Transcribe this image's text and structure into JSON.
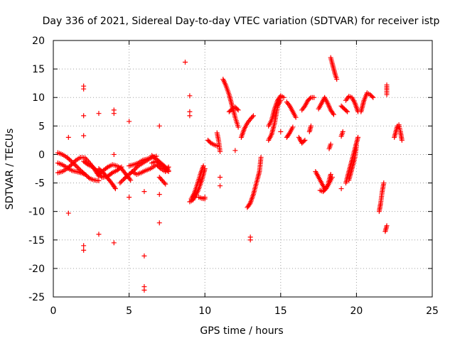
{
  "chart_data": {
    "type": "scatter",
    "title": "Day 336 of 2021, Sidereal Day-to-day VTEC variation (SDTVAR) for receiver istp",
    "xlabel": "GPS time / hours",
    "ylabel": "SDTVAR / TECUs",
    "xlim": [
      0,
      25
    ],
    "ylim": [
      -25,
      20
    ],
    "xticks": [
      0,
      5,
      10,
      15,
      20,
      25
    ],
    "yticks": [
      -25,
      -20,
      -15,
      -10,
      -5,
      0,
      5,
      10,
      15,
      20
    ],
    "grid": true,
    "marker": "+",
    "color": "#ff0000",
    "series": [
      {
        "name": "SDTVAR",
        "segments": [
          [
            [
              0.3,
              0.3
            ],
            [
              0.6,
              0
            ],
            [
              0.9,
              -0.5
            ],
            [
              1.2,
              -1.2
            ],
            [
              1.5,
              -2
            ],
            [
              1.8,
              -2.8
            ],
            [
              2.1,
              -3.5
            ],
            [
              2.4,
              -4.2
            ],
            [
              2.7,
              -4.5
            ],
            [
              3.0,
              -4.6
            ]
          ],
          [
            [
              0.3,
              -1.5
            ],
            [
              0.6,
              -1.8
            ],
            [
              0.9,
              -2.3
            ],
            [
              1.2,
              -2.8
            ],
            [
              1.5,
              -3.0
            ],
            [
              1.8,
              -3.2
            ],
            [
              2.1,
              -3.5
            ]
          ],
          [
            [
              0.3,
              -3.2
            ],
            [
              0.6,
              -3.0
            ],
            [
              0.9,
              -2.5
            ],
            [
              1.2,
              -1.8
            ],
            [
              1.5,
              -1.0
            ],
            [
              1.8,
              -0.5
            ],
            [
              2.1,
              -0.6
            ],
            [
              2.4,
              -1.5
            ],
            [
              2.7,
              -2.5
            ],
            [
              3.0,
              -3.8
            ]
          ],
          [
            [
              2.0,
              -1.2
            ],
            [
              2.3,
              -1.8
            ],
            [
              2.6,
              -2.2
            ],
            [
              2.9,
              -3.0
            ],
            [
              3.2,
              -4.0
            ]
          ],
          [
            [
              3.0,
              -3.5
            ],
            [
              3.3,
              -2.8
            ],
            [
              3.6,
              -2.2
            ],
            [
              3.9,
              -1.8
            ],
            [
              4.2,
              -2.0
            ],
            [
              4.5,
              -2.5
            ],
            [
              4.8,
              -3.5
            ],
            [
              5.1,
              -4.5
            ]
          ],
          [
            [
              3.0,
              -2.5
            ],
            [
              3.3,
              -3.2
            ],
            [
              3.6,
              -4.2
            ],
            [
              3.9,
              -5.2
            ],
            [
              4.1,
              -6.0
            ]
          ],
          [
            [
              3.3,
              -4.0
            ],
            [
              3.6,
              -3.8
            ],
            [
              3.9,
              -3.2
            ],
            [
              4.2,
              -2.8
            ],
            [
              4.5,
              -2.2
            ]
          ],
          [
            [
              4.4,
              -5.0
            ],
            [
              4.7,
              -4.2
            ],
            [
              5.0,
              -3.5
            ],
            [
              5.3,
              -2.8
            ],
            [
              5.6,
              -2.0
            ],
            [
              5.9,
              -1.5
            ],
            [
              6.2,
              -1.0
            ],
            [
              6.5,
              -0.5
            ]
          ],
          [
            [
              5.0,
              -2.0
            ],
            [
              5.3,
              -1.8
            ],
            [
              5.6,
              -1.5
            ],
            [
              5.9,
              -1.0
            ],
            [
              6.2,
              -0.8
            ],
            [
              6.5,
              -0.5
            ],
            [
              6.8,
              -0.3
            ]
          ],
          [
            [
              5.2,
              -3.0
            ],
            [
              5.5,
              -3.5
            ],
            [
              5.8,
              -3.2
            ],
            [
              6.1,
              -2.8
            ],
            [
              6.4,
              -2.5
            ],
            [
              6.7,
              -2.0
            ]
          ],
          [
            [
              6.5,
              -1.5
            ],
            [
              6.8,
              -1.2
            ],
            [
              7.1,
              -1.8
            ],
            [
              7.4,
              -2.5
            ],
            [
              7.6,
              -3.0
            ]
          ],
          [
            [
              6.5,
              -0.2
            ],
            [
              6.8,
              -0.8
            ],
            [
              7.1,
              -1.5
            ],
            [
              7.4,
              -2.2
            ],
            [
              7.6,
              -2.8
            ]
          ],
          [
            [
              6.8,
              -1.8
            ],
            [
              7.1,
              -2.5
            ],
            [
              7.4,
              -3.0
            ],
            [
              7.6,
              -2.2
            ]
          ],
          [
            [
              7.0,
              -4.0
            ],
            [
              7.2,
              -4.6
            ],
            [
              7.4,
              -5.2
            ]
          ],
          [
            [
              9.0,
              -8.3
            ],
            [
              9.2,
              -8.0
            ],
            [
              9.4,
              -7.2
            ],
            [
              9.6,
              -6.0
            ],
            [
              9.8,
              -4.5
            ],
            [
              10.0,
              -2.5
            ]
          ],
          [
            [
              9.1,
              -7.8
            ],
            [
              9.3,
              -6.8
            ],
            [
              9.5,
              -5.2
            ],
            [
              9.7,
              -3.5
            ],
            [
              9.9,
              -2.0
            ]
          ],
          [
            [
              9.6,
              -7.5
            ],
            [
              9.8,
              -7.7
            ],
            [
              10.0,
              -7.8
            ]
          ],
          [
            [
              10.2,
              2.5
            ],
            [
              10.4,
              2.0
            ],
            [
              10.6,
              1.7
            ],
            [
              10.8,
              1.5
            ]
          ],
          [
            [
              10.8,
              3.8
            ],
            [
              10.9,
              2.5
            ],
            [
              11.0,
              0.5
            ]
          ],
          [
            [
              11.2,
              13.2
            ],
            [
              11.4,
              12.0
            ],
            [
              11.6,
              10.5
            ],
            [
              11.8,
              8.5
            ],
            [
              12.0,
              6.5
            ],
            [
              12.2,
              4.8
            ]
          ],
          [
            [
              11.6,
              7.5
            ],
            [
              11.8,
              8.0
            ],
            [
              12.0,
              8.3
            ],
            [
              12.2,
              7.8
            ]
          ],
          [
            [
              12.4,
              3.0
            ],
            [
              12.6,
              4.5
            ],
            [
              12.8,
              5.5
            ],
            [
              13.0,
              6.2
            ],
            [
              13.2,
              6.8
            ]
          ],
          [
            [
              12.8,
              -9.3
            ],
            [
              13.0,
              -8.5
            ],
            [
              13.2,
              -7.0
            ],
            [
              13.4,
              -5.0
            ],
            [
              13.6,
              -3.0
            ],
            [
              13.7,
              -0.5
            ]
          ],
          [
            [
              14.2,
              5.0
            ],
            [
              14.4,
              6.0
            ],
            [
              14.6,
              8.0
            ],
            [
              14.8,
              9.5
            ],
            [
              15.0,
              10.3
            ],
            [
              15.2,
              10.0
            ]
          ],
          [
            [
              14.2,
              2.5
            ],
            [
              14.4,
              3.5
            ],
            [
              14.6,
              5.5
            ],
            [
              14.8,
              8.5
            ],
            [
              15.0,
              9.5
            ]
          ],
          [
            [
              15.4,
              3.0
            ],
            [
              15.6,
              3.8
            ],
            [
              15.8,
              4.8
            ]
          ],
          [
            [
              15.4,
              9.2
            ],
            [
              15.6,
              8.5
            ],
            [
              15.8,
              7.5
            ],
            [
              16.0,
              6.5
            ]
          ],
          [
            [
              16.2,
              3.0
            ],
            [
              16.4,
              2.0
            ],
            [
              16.6,
              2.5
            ]
          ],
          [
            [
              16.4,
              7.8
            ],
            [
              16.6,
              8.5
            ],
            [
              16.8,
              9.5
            ],
            [
              17.0,
              10.0
            ],
            [
              17.2,
              10.0
            ]
          ],
          [
            [
              16.9,
              4.0
            ],
            [
              17.0,
              5.0
            ]
          ],
          [
            [
              17.5,
              8.0
            ],
            [
              17.7,
              9.0
            ],
            [
              17.9,
              10.0
            ],
            [
              18.1,
              9.0
            ],
            [
              18.3,
              7.8
            ],
            [
              18.5,
              7.0
            ]
          ],
          [
            [
              17.3,
              -3.0
            ],
            [
              17.5,
              -4.0
            ],
            [
              17.7,
              -5.0
            ],
            [
              17.9,
              -6.0
            ],
            [
              18.1,
              -5.5
            ],
            [
              18.3,
              -3.5
            ]
          ],
          [
            [
              17.6,
              -6.3
            ],
            [
              17.8,
              -6.5
            ],
            [
              18.0,
              -6.0
            ],
            [
              18.2,
              -5.0
            ],
            [
              18.4,
              -4.0
            ]
          ],
          [
            [
              18.2,
              1.0
            ],
            [
              18.3,
              1.8
            ]
          ],
          [
            [
              18.3,
              17.0
            ],
            [
              18.4,
              16.0
            ],
            [
              18.5,
              15.0
            ],
            [
              18.6,
              14.0
            ],
            [
              18.7,
              13.2
            ]
          ],
          [
            [
              19.0,
              3.2
            ],
            [
              19.1,
              4.0
            ]
          ],
          [
            [
              19.0,
              8.5
            ],
            [
              19.2,
              8.0
            ],
            [
              19.4,
              7.5
            ]
          ],
          [
            [
              19.3,
              9.5
            ],
            [
              19.5,
              10.2
            ],
            [
              19.7,
              10.0
            ],
            [
              19.9,
              9.0
            ],
            [
              20.1,
              7.5
            ]
          ],
          [
            [
              19.3,
              -5.0
            ],
            [
              19.5,
              -3.0
            ],
            [
              19.7,
              -1.0
            ],
            [
              19.9,
              1.0
            ],
            [
              20.1,
              3.0
            ]
          ],
          [
            [
              19.5,
              -4.5
            ],
            [
              19.7,
              -2.5
            ],
            [
              19.9,
              -0.5
            ],
            [
              20.0,
              1.5
            ]
          ],
          [
            [
              20.3,
              7.5
            ],
            [
              20.5,
              9.5
            ],
            [
              20.7,
              10.8
            ],
            [
              20.9,
              10.5
            ],
            [
              21.1,
              10.0
            ]
          ],
          [
            [
              21.5,
              -10.0
            ],
            [
              21.6,
              -8.5
            ],
            [
              21.7,
              -6.5
            ],
            [
              21.8,
              -5.0
            ]
          ],
          [
            [
              21.9,
              -13.5
            ],
            [
              22.0,
              -12.5
            ]
          ],
          [
            [
              22.0,
              12.2
            ],
            [
              22.0,
              10.5
            ]
          ],
          [
            [
              22.5,
              3.0
            ],
            [
              22.6,
              4.0
            ],
            [
              22.7,
              5.0
            ],
            [
              22.8,
              5.2
            ],
            [
              22.9,
              4.0
            ],
            [
              23.0,
              2.5
            ]
          ]
        ],
        "points": [
          [
            1.0,
            3.0
          ],
          [
            1.0,
            -10.3
          ],
          [
            2.0,
            12.0
          ],
          [
            2.0,
            11.5
          ],
          [
            2.0,
            6.8
          ],
          [
            2.0,
            3.3
          ],
          [
            2.0,
            -16.0
          ],
          [
            2.0,
            -16.8
          ],
          [
            3.0,
            7.2
          ],
          [
            3.0,
            -14.0
          ],
          [
            4.0,
            7.8
          ],
          [
            4.0,
            7.2
          ],
          [
            4.0,
            -15.5
          ],
          [
            4.0,
            0
          ],
          [
            5.0,
            5.8
          ],
          [
            5.0,
            -7.5
          ],
          [
            6.0,
            -6.5
          ],
          [
            6.0,
            -17.8
          ],
          [
            6.0,
            -23.2
          ],
          [
            6.0,
            -23.8
          ],
          [
            7.0,
            5.0
          ],
          [
            7.0,
            -7.0
          ],
          [
            7.0,
            -12.0
          ],
          [
            8.7,
            16.2
          ],
          [
            9.0,
            10.3
          ],
          [
            9.0,
            7.5
          ],
          [
            9.0,
            6.8
          ],
          [
            10.0,
            -7.5
          ],
          [
            11.0,
            -4.0
          ],
          [
            11.0,
            -5.5
          ],
          [
            12.0,
            0.7
          ],
          [
            13.0,
            -14.5
          ],
          [
            13.0,
            -15.0
          ],
          [
            15.0,
            4.0
          ],
          [
            19.0,
            -6.0
          ]
        ]
      }
    ]
  }
}
